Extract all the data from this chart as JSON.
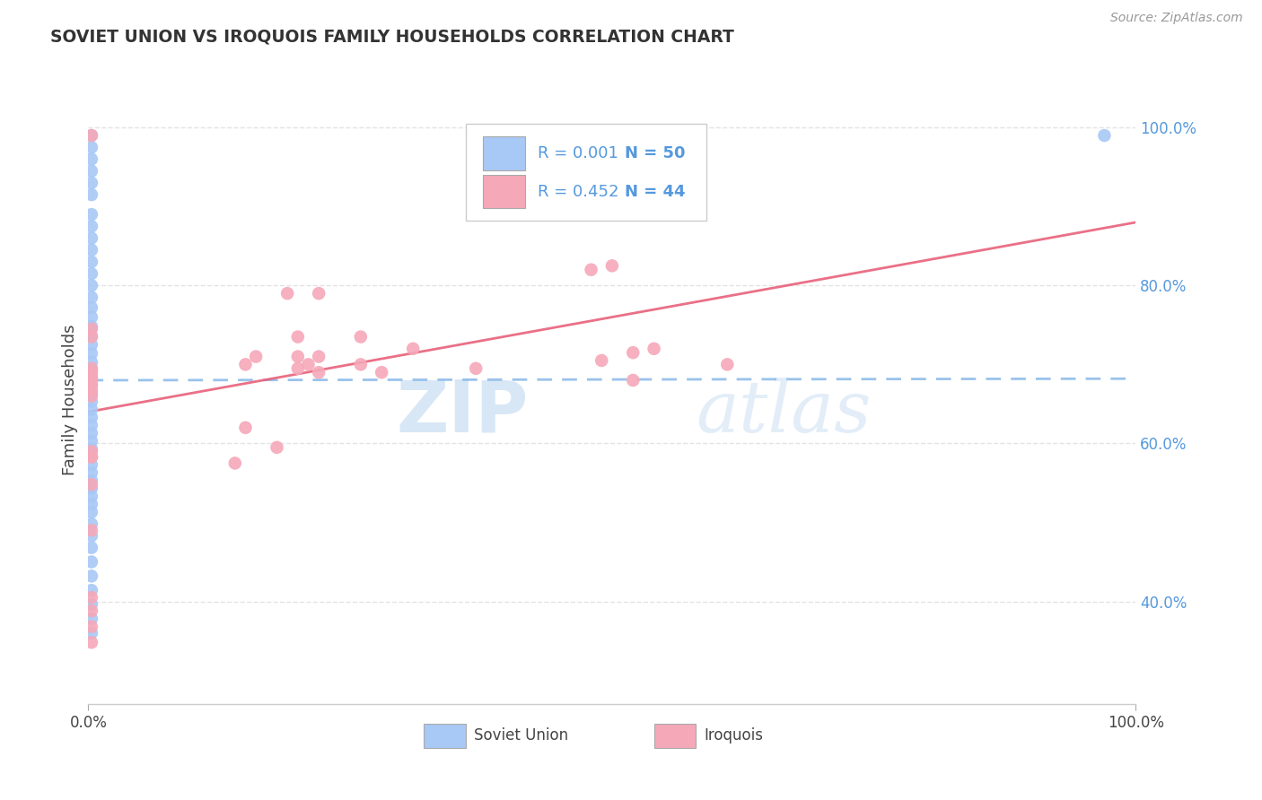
{
  "title": "SOVIET UNION VS IROQUOIS FAMILY HOUSEHOLDS CORRELATION CHART",
  "source": "Source: ZipAtlas.com",
  "ylabel": "Family Households",
  "legend_soviet_r": "0.001",
  "legend_soviet_n": "50",
  "legend_iroquois_r": "0.452",
  "legend_iroquois_n": "44",
  "legend_label_soviet": "Soviet Union",
  "legend_label_iroquois": "Iroquois",
  "watermark_zip": "ZIP",
  "watermark_atlas": "atlas",
  "soviet_color": "#a8c8f5",
  "iroquois_color": "#f5a8b8",
  "soviet_line_color": "#88b8e8",
  "iroquois_line_color": "#e8607a",
  "tick_color": "#5599dd",
  "text_color": "#444444",
  "grid_color": "#dddddd",
  "xlim": [
    0.0,
    1.0
  ],
  "ylim": [
    0.27,
    1.04
  ],
  "yticks": [
    0.4,
    0.6,
    0.8,
    1.0
  ],
  "ytick_labels": [
    "40.0%",
    "60.0%",
    "80.0%",
    "100.0%"
  ],
  "soviet_x": [
    0.003,
    0.003,
    0.003,
    0.003,
    0.003,
    0.003,
    0.003,
    0.003,
    0.003,
    0.003,
    0.003,
    0.003,
    0.003,
    0.003,
    0.003,
    0.003,
    0.003,
    0.003,
    0.003,
    0.003,
    0.003,
    0.003,
    0.003,
    0.003,
    0.003,
    0.003,
    0.003,
    0.003,
    0.003,
    0.003,
    0.003,
    0.003,
    0.003,
    0.003,
    0.003,
    0.003,
    0.003,
    0.003,
    0.003,
    0.003,
    0.003,
    0.003,
    0.003,
    0.003,
    0.003,
    0.003,
    0.003,
    0.003,
    0.003,
    0.97
  ],
  "soviet_y": [
    0.99,
    0.975,
    0.96,
    0.945,
    0.93,
    0.915,
    0.89,
    0.875,
    0.86,
    0.845,
    0.83,
    0.815,
    0.8,
    0.785,
    0.772,
    0.76,
    0.748,
    0.736,
    0.725,
    0.714,
    0.703,
    0.693,
    0.683,
    0.673,
    0.663,
    0.653,
    0.643,
    0.633,
    0.623,
    0.613,
    0.603,
    0.593,
    0.583,
    0.573,
    0.563,
    0.553,
    0.543,
    0.533,
    0.523,
    0.513,
    0.498,
    0.483,
    0.468,
    0.45,
    0.432,
    0.414,
    0.396,
    0.378,
    0.36,
    0.99
  ],
  "iroquois_x": [
    0.5,
    0.48,
    0.19,
    0.22,
    0.003,
    0.003,
    0.2,
    0.26,
    0.31,
    0.2,
    0.22,
    0.26,
    0.003,
    0.37,
    0.003,
    0.003,
    0.16,
    0.15,
    0.2,
    0.22,
    0.49,
    0.61,
    0.28,
    0.003,
    0.52,
    0.003,
    0.003,
    0.003,
    0.54,
    0.15,
    0.18,
    0.003,
    0.003,
    0.21,
    0.003,
    0.52,
    0.003,
    0.14,
    0.003,
    0.003,
    0.003,
    0.003,
    0.003,
    0.003
  ],
  "iroquois_y": [
    0.825,
    0.82,
    0.79,
    0.79,
    0.745,
    0.735,
    0.735,
    0.735,
    0.72,
    0.71,
    0.71,
    0.7,
    0.695,
    0.695,
    0.69,
    0.68,
    0.71,
    0.7,
    0.695,
    0.69,
    0.705,
    0.7,
    0.69,
    0.685,
    0.68,
    0.675,
    0.668,
    0.66,
    0.72,
    0.62,
    0.595,
    0.59,
    0.583,
    0.7,
    0.583,
    0.715,
    0.548,
    0.575,
    0.49,
    0.405,
    0.388,
    0.368,
    0.348,
    0.99
  ],
  "soviet_trendline": [
    0.0,
    1.0,
    0.68,
    0.682
  ],
  "iroquois_trendline": [
    0.0,
    1.0,
    0.64,
    0.88
  ]
}
